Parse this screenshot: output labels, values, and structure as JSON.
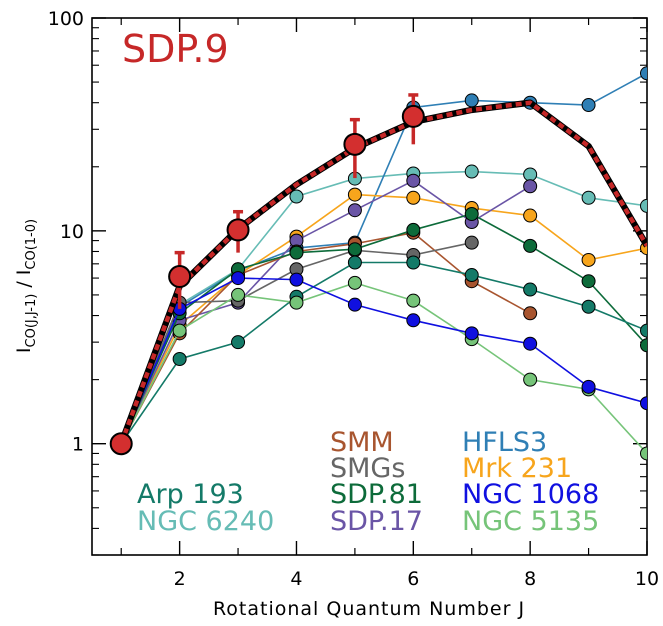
{
  "chart_data": {
    "type": "line",
    "title": "SDP.9",
    "title_color": "#c62828",
    "xlabel": "Rotational Quantum Number J",
    "ylabel": "I_CO(J,J-1) / I_CO(1-0)",
    "ylabel_main_left": "I",
    "ylabel_sub_left": "CO(J,J-1)",
    "ylabel_sep": " / ",
    "ylabel_main_right": "I",
    "ylabel_sub_right": "CO(1-0)",
    "xlim": [
      0.5,
      10
    ],
    "ylim": [
      0.3,
      100
    ],
    "yscale": "log",
    "x_ticks": [
      2,
      4,
      6,
      8,
      10
    ],
    "x_tick_labels": [
      "2",
      "4",
      "6",
      "8",
      "10"
    ],
    "x_minor_ticks": [
      1,
      3,
      5,
      7,
      9
    ],
    "y_ticks": [
      1,
      10,
      100
    ],
    "y_tick_labels": [
      "1",
      "10",
      "100"
    ],
    "grid": false,
    "legend_placement": "bottom",
    "series": [
      {
        "name": "NGC 6240",
        "color": "#66bcb5",
        "x": [
          1,
          2,
          3,
          4,
          5,
          6,
          7,
          8,
          9,
          10
        ],
        "y": [
          1,
          4.5,
          6.6,
          14.5,
          17.6,
          18.6,
          19,
          18.4,
          14.3,
          13.1
        ]
      },
      {
        "name": "HFLS3",
        "color": "#2f7fb5",
        "x": [
          1,
          2,
          3,
          4,
          5,
          6,
          7,
          8,
          9,
          10
        ],
        "y": [
          1,
          4.4,
          6.5,
          8.3,
          8.8,
          38,
          41,
          40,
          39,
          55
        ]
      },
      {
        "name": "Mrk 231",
        "color": "#f7a51c",
        "x": [
          1,
          2,
          3,
          4,
          5,
          6,
          7,
          8,
          9,
          10
        ],
        "y": [
          1,
          3.6,
          6.2,
          9.4,
          14.8,
          14.3,
          12.8,
          11.8,
          7.3,
          8.3
        ]
      },
      {
        "name": "SDP.17",
        "color": "#6a55a6",
        "x": [
          1,
          2,
          3,
          4,
          5,
          6,
          7,
          8
        ],
        "y": [
          1,
          3.8,
          4.6,
          9,
          12.5,
          17.2,
          11,
          16.2
        ]
      },
      {
        "name": "SMM",
        "color": "#a8552f",
        "x": [
          1,
          2,
          3,
          4,
          5,
          6,
          7,
          8
        ],
        "y": [
          1,
          3.3,
          6.2,
          8,
          8.7,
          9.8,
          5.8,
          4.1
        ]
      },
      {
        "name": "SMGs",
        "color": "#666666",
        "x": [
          1,
          2,
          3,
          4,
          5,
          6,
          7
        ],
        "y": [
          1,
          4.6,
          4.7,
          6.6,
          8.1,
          7.7,
          8.8
        ]
      },
      {
        "name": "SDP.81",
        "color": "#0d6b3a",
        "x": [
          1,
          2,
          3,
          4,
          5,
          6,
          7,
          8,
          9,
          10
        ],
        "y": [
          1,
          4.1,
          6.6,
          7.9,
          8.2,
          10.1,
          12,
          8.5,
          5.8,
          2.9
        ]
      },
      {
        "name": "Arp 193",
        "color": "#147a68",
        "x": [
          1,
          2,
          3,
          4,
          5,
          6,
          7,
          8,
          9,
          10
        ],
        "y": [
          1,
          2.5,
          3,
          4.9,
          7.1,
          7.1,
          6.2,
          5.3,
          4.4,
          3.4
        ]
      },
      {
        "name": "NGC 5135",
        "color": "#76c479",
        "x": [
          1,
          2,
          3,
          4,
          5,
          6,
          7,
          8,
          9,
          10
        ],
        "y": [
          1,
          3.4,
          5,
          4.6,
          5.7,
          4.7,
          3.1,
          2,
          1.8,
          0.9
        ]
      },
      {
        "name": "NGC 1068",
        "color": "#1010e0",
        "x": [
          1,
          2,
          3,
          4,
          5,
          6,
          7,
          8,
          9,
          10
        ],
        "y": [
          1,
          4.3,
          6,
          5.9,
          4.5,
          3.8,
          3.3,
          2.95,
          1.85,
          1.55
        ]
      }
    ],
    "sdp9": {
      "name": "SDP.9",
      "color": "#c62828",
      "x": [
        1,
        2,
        3,
        5,
        6
      ],
      "y": [
        1,
        6.1,
        10.1,
        25.5,
        34.5
      ],
      "y_err_upper": [
        0,
        1.8,
        2.2,
        7.8,
        9
      ],
      "y_err_lower": [
        0,
        1.8,
        2.2,
        7.8,
        9
      ],
      "model_x": [
        1,
        2,
        3,
        4,
        5,
        6,
        7,
        8,
        9,
        10
      ],
      "model_y": [
        1,
        5.5,
        10.2,
        16.5,
        24.5,
        32.5,
        37,
        40,
        25,
        8.5
      ]
    },
    "legend": [
      {
        "label": "SMM",
        "color": "#a8552f"
      },
      {
        "label": "HFLS3",
        "color": "#2f7fb5"
      },
      {
        "label": "SMGs",
        "color": "#666666"
      },
      {
        "label": "Mrk 231",
        "color": "#f7a51c"
      },
      {
        "label": "Arp 193",
        "color": "#147a68"
      },
      {
        "label": "SDP.81",
        "color": "#0d6b3a"
      },
      {
        "label": "NGC 1068",
        "color": "#1010e0"
      },
      {
        "label": "NGC 6240",
        "color": "#66bcb5"
      },
      {
        "label": "SDP.17",
        "color": "#6a55a6"
      },
      {
        "label": "NGC 5135",
        "color": "#76c479"
      }
    ]
  }
}
